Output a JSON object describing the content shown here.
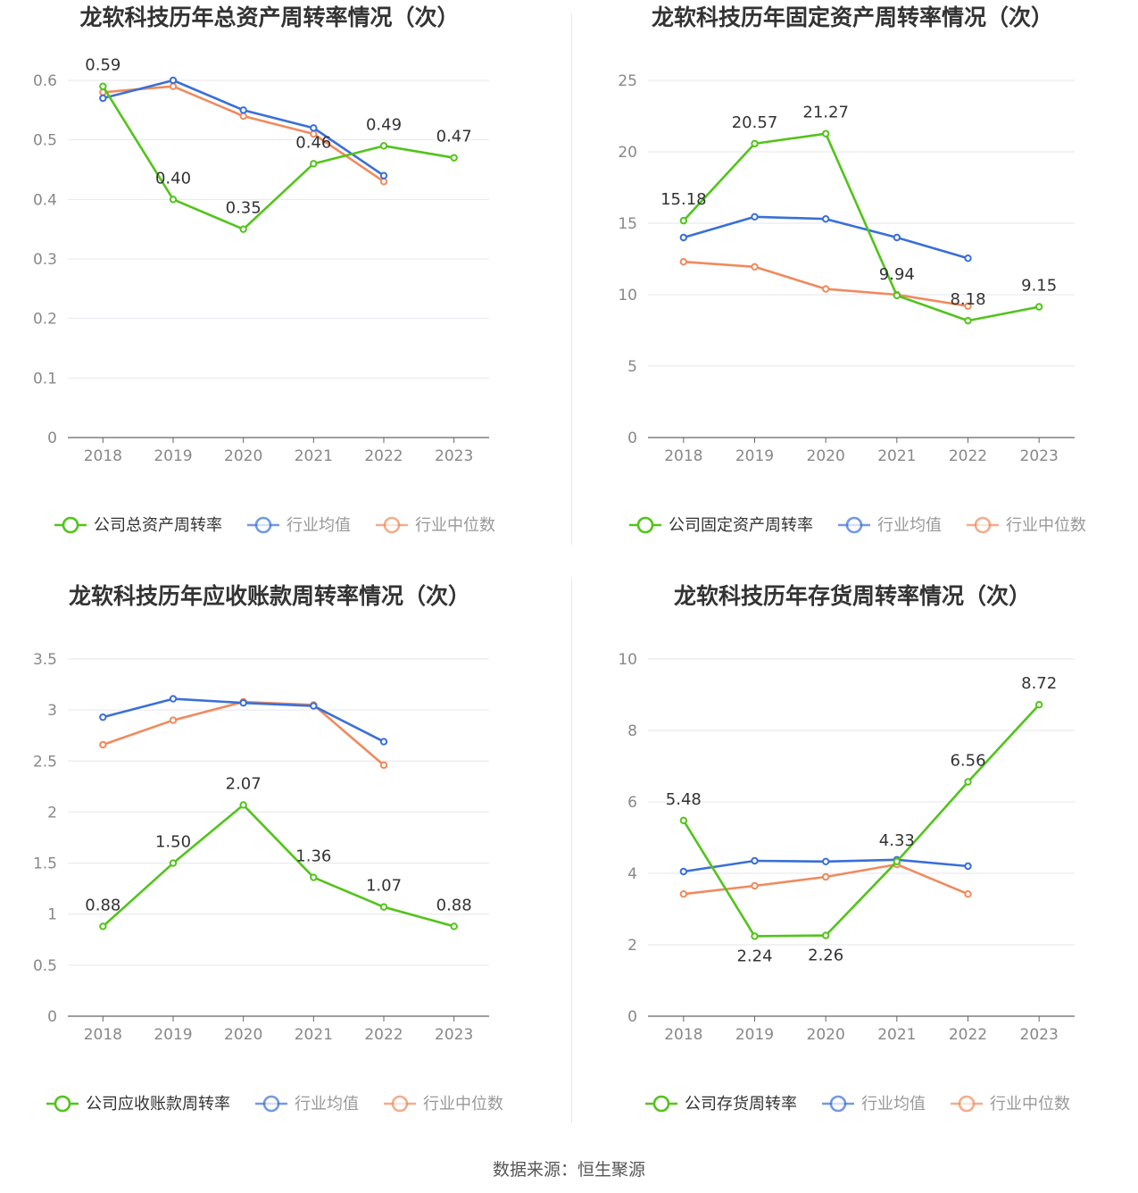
{
  "colors": {
    "company": "#52c41a",
    "average": "#3a6fd8",
    "median": "#f08a5d",
    "grid": "#e6e6ee",
    "axis": "#666666",
    "tick_text": "#888888",
    "title_text": "#333333"
  },
  "source": "数据来源：恒生聚源",
  "chart_data": [
    {
      "type": "line",
      "title": "龙软科技历年总资产周转率情况（次）",
      "categories": [
        "2018",
        "2019",
        "2020",
        "2021",
        "2022",
        "2023"
      ],
      "ylim": [
        0,
        0.6
      ],
      "yticks": [
        "0",
        "0.1",
        "0.2",
        "0.3",
        "0.4",
        "0.5",
        "0.6"
      ],
      "legend": [
        "公司总资产周转率",
        "行业均值",
        "行业中位数"
      ],
      "series": [
        {
          "name": "公司总资产周转率",
          "key": "company",
          "values": [
            0.59,
            0.4,
            0.35,
            0.46,
            0.49,
            0.47
          ],
          "labels": [
            "0.59",
            "0.40",
            "0.35",
            "0.46",
            "0.49",
            "0.47"
          ]
        },
        {
          "name": "行业均值",
          "key": "average",
          "values": [
            0.57,
            0.6,
            0.55,
            0.52,
            0.44,
            null
          ]
        },
        {
          "name": "行业中位数",
          "key": "median",
          "values": [
            0.58,
            0.59,
            0.54,
            0.51,
            0.43,
            null
          ]
        }
      ]
    },
    {
      "type": "line",
      "title": "龙软科技历年固定资产周转率情况（次）",
      "categories": [
        "2018",
        "2019",
        "2020",
        "2021",
        "2022",
        "2023"
      ],
      "ylim": [
        0,
        25
      ],
      "yticks": [
        "0",
        "5",
        "10",
        "15",
        "20",
        "25"
      ],
      "legend": [
        "公司固定资产周转率",
        "行业均值",
        "行业中位数"
      ],
      "series": [
        {
          "name": "公司固定资产周转率",
          "key": "company",
          "values": [
            15.18,
            20.57,
            21.27,
            9.94,
            8.18,
            9.15
          ],
          "labels": [
            "15.18",
            "20.57",
            "21.27",
            "9.94",
            "8.18",
            "9.15"
          ]
        },
        {
          "name": "行业均值",
          "key": "average",
          "values": [
            14.0,
            15.45,
            15.3,
            14.0,
            12.55,
            null
          ]
        },
        {
          "name": "行业中位数",
          "key": "median",
          "values": [
            12.3,
            11.95,
            10.4,
            10.0,
            9.2,
            null
          ]
        }
      ]
    },
    {
      "type": "line",
      "title": "龙软科技历年应收账款周转率情况（次）",
      "categories": [
        "2018",
        "2019",
        "2020",
        "2021",
        "2022",
        "2023"
      ],
      "ylim": [
        0,
        3.5
      ],
      "yticks": [
        "0",
        "0.5",
        "1",
        "1.5",
        "2",
        "2.5",
        "3",
        "3.5"
      ],
      "legend": [
        "公司应收账款周转率",
        "行业均值",
        "行业中位数"
      ],
      "series": [
        {
          "name": "公司应收账款周转率",
          "key": "company",
          "values": [
            0.88,
            1.5,
            2.07,
            1.36,
            1.07,
            0.88
          ],
          "labels": [
            "0.88",
            "1.50",
            "2.07",
            "1.36",
            "1.07",
            "0.88"
          ]
        },
        {
          "name": "行业均值",
          "key": "average",
          "values": [
            2.93,
            3.11,
            3.07,
            3.04,
            2.69,
            null
          ]
        },
        {
          "name": "行业中位数",
          "key": "median",
          "values": [
            2.66,
            2.9,
            3.08,
            3.05,
            2.46,
            null
          ]
        }
      ]
    },
    {
      "type": "line",
      "title": "龙软科技历年存货周转率情况（次）",
      "categories": [
        "2018",
        "2019",
        "2020",
        "2021",
        "2022",
        "2023"
      ],
      "ylim": [
        0,
        10
      ],
      "yticks": [
        "0",
        "2",
        "4",
        "6",
        "8",
        "10"
      ],
      "legend": [
        "公司存货周转率",
        "行业均值",
        "行业中位数"
      ],
      "series": [
        {
          "name": "公司存货周转率",
          "key": "company",
          "values": [
            5.48,
            2.24,
            2.26,
            4.33,
            6.56,
            8.72
          ],
          "labels": [
            "5.48",
            "2.24",
            "2.26",
            "4.33",
            "6.56",
            "8.72"
          ]
        },
        {
          "name": "行业均值",
          "key": "average",
          "values": [
            4.05,
            4.35,
            4.33,
            4.38,
            4.2,
            null
          ]
        },
        {
          "name": "行业中位数",
          "key": "median",
          "values": [
            3.42,
            3.65,
            3.9,
            4.25,
            3.42,
            null
          ]
        }
      ]
    }
  ]
}
